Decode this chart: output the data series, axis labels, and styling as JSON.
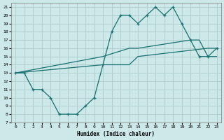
{
  "xlabel": "Humidex (Indice chaleur)",
  "bg_color": "#cce8e8",
  "line_color": "#1a7070",
  "grid_color": "#b0d0d0",
  "xlim": [
    -0.5,
    23.5
  ],
  "ylim": [
    7,
    21.5
  ],
  "xticks": [
    0,
    1,
    2,
    3,
    4,
    5,
    6,
    7,
    8,
    9,
    10,
    11,
    12,
    13,
    14,
    15,
    16,
    17,
    18,
    19,
    20,
    21,
    22,
    23
  ],
  "yticks": [
    7,
    8,
    9,
    10,
    11,
    12,
    13,
    14,
    15,
    16,
    17,
    18,
    19,
    20,
    21
  ],
  "line1_x": [
    0,
    1,
    2,
    3,
    4,
    5,
    6,
    7,
    8,
    9,
    10,
    11,
    12,
    13,
    14,
    15,
    16,
    17,
    18,
    19,
    20,
    21,
    22,
    23
  ],
  "line1_y": [
    13,
    13,
    11,
    11,
    10,
    8,
    8,
    8,
    9,
    10,
    14,
    18,
    20,
    20,
    19,
    20,
    21,
    20,
    21,
    19,
    17,
    15,
    15,
    16
  ],
  "line2_x": [
    0,
    10,
    13,
    14,
    20,
    21,
    22,
    23
  ],
  "line2_y": [
    13,
    15,
    16,
    16,
    17,
    17,
    15,
    15
  ],
  "line3_x": [
    0,
    10,
    13,
    14,
    22,
    23
  ],
  "line3_y": [
    13,
    14,
    14,
    15,
    16,
    16
  ]
}
